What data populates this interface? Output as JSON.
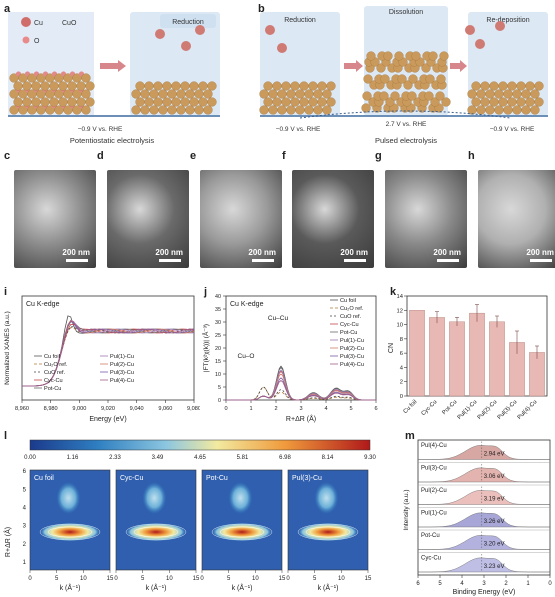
{
  "panel_labels": {
    "a": "a",
    "b": "b",
    "c": "c",
    "d": "d",
    "e": "e",
    "f": "f",
    "g": "g",
    "h": "h",
    "i": "i",
    "j": "j",
    "k": "k",
    "l": "l",
    "m": "m"
  },
  "schematic_a": {
    "legend_cu": "Cu",
    "legend_o": "O",
    "legend_cuo": "CuO",
    "step_label": "Reduction",
    "potential": "−0.9 V vs. RHE",
    "caption": "Potentiostatic electrolysis"
  },
  "schematic_b": {
    "steps": [
      "Reduction",
      "Dissolution",
      "Re-deposition"
    ],
    "potentials": [
      "−0.9 V vs. RHE",
      "2.7 V vs. RHE",
      "−0.9 V vs. RHE"
    ],
    "caption": "Pulsed electrolysis"
  },
  "sem_panels": [
    {
      "label": "c",
      "scale": "200 nm",
      "tone": "#8f8f8f"
    },
    {
      "label": "d",
      "scale": "200 nm",
      "tone": "#6a6a6a"
    },
    {
      "label": "e",
      "scale": "200 nm",
      "tone": "#9a9a9a"
    },
    {
      "label": "f",
      "scale": "200 nm",
      "tone": "#5a5a5a"
    },
    {
      "label": "g",
      "scale": "200 nm",
      "tone": "#8a8a8a"
    },
    {
      "label": "h",
      "scale": "200 nm",
      "tone": "#b0b0b0"
    }
  ],
  "xanes": {
    "edge_label": "Cu K-edge",
    "ylabel": "Normalized XANES (a.u.)",
    "xlabel": "Energy (eV)",
    "xticks": [
      "8,960",
      "8,980",
      "9,000",
      "9,020",
      "9,040",
      "9,060",
      "9,080"
    ],
    "legend": [
      "Cu foil",
      "Cu₂O ref.",
      "CuO ref.",
      "Cyc-Cu",
      "Pot-Cu",
      "Pul(1)-Cu",
      "Pul(2)-Cu",
      "Pul(3)-Cu",
      "Pul(4)-Cu"
    ]
  },
  "exafs": {
    "edge_label": "Cu K-edge",
    "ylabel": "|FT(k²χ(k))| (Å⁻³)",
    "xlabel": "R+ΔR (Å)",
    "xticks": [
      "0",
      "1",
      "2",
      "3",
      "4",
      "5",
      "6"
    ],
    "yticks": [
      "0",
      "5",
      "10",
      "15",
      "20",
      "25",
      "30",
      "35",
      "40"
    ],
    "annot_cucu": "Cu–Cu",
    "annot_cuo": "Cu–O",
    "legend": [
      "Cu foil",
      "Cu₂O ref.",
      "CuO ref.",
      "Cyc-Cu",
      "Pot-Cu",
      "Pul(1)-Cu",
      "Pul(2)-Cu",
      "Pul(3)-Cu",
      "Pul(4)-Cu"
    ]
  },
  "chart_data": {
    "type": "bar",
    "title": "",
    "categories": [
      "Cu foil",
      "Cyc-Cu",
      "Pot-Cu",
      "Pul(1)-Cu",
      "Pul(2)-Cu",
      "Pul(3)-Cu",
      "Pul(4)-Cu"
    ],
    "values": [
      12.0,
      11.0,
      10.4,
      11.6,
      10.4,
      7.5,
      6.1
    ],
    "errors": [
      0.0,
      0.8,
      0.6,
      1.2,
      0.8,
      1.6,
      0.9
    ],
    "xlabel": "",
    "ylabel": "CN",
    "ylim": [
      0,
      14
    ],
    "yticks": [
      0,
      2,
      4,
      6,
      8,
      10,
      12,
      14
    ],
    "bar_color": "#e8b8b4"
  },
  "wavelet": {
    "colorbar_ticks": [
      "0.00",
      "1.16",
      "2.33",
      "3.49",
      "4.65",
      "5.81",
      "6.98",
      "8.14",
      "9.30"
    ],
    "maps": [
      "Cu foil",
      "Cyc-Cu",
      "Pot-Cu",
      "Pul(3)-Cu"
    ],
    "ylabel": "R+ΔR (Å)",
    "xlabel": "k (Å⁻¹)",
    "yticks": [
      "1",
      "2",
      "3",
      "4",
      "5",
      "6"
    ],
    "xticks": [
      "0",
      "5",
      "10",
      "15"
    ]
  },
  "dband": {
    "samples": [
      "Pul(4)-Cu",
      "Pul(3)-Cu",
      "Pul(2)-Cu",
      "Pul(1)-Cu",
      "Pot-Cu",
      "Cyc-Cu"
    ],
    "centers": [
      "2.94 eV",
      "3.06 eV",
      "3.19 eV",
      "3.26 eV",
      "3.20 eV",
      "3.23 eV"
    ],
    "colors": [
      "#c88a84",
      "#d99a94",
      "#e3aaa6",
      "#8a88c8",
      "#9a98d4",
      "#aaa8dc"
    ],
    "xlabel": "Binding Energy (eV)",
    "ylabel": "Intensity (a.u.)",
    "xticks": [
      "6",
      "5",
      "4",
      "3",
      "2",
      "1",
      "0"
    ]
  }
}
